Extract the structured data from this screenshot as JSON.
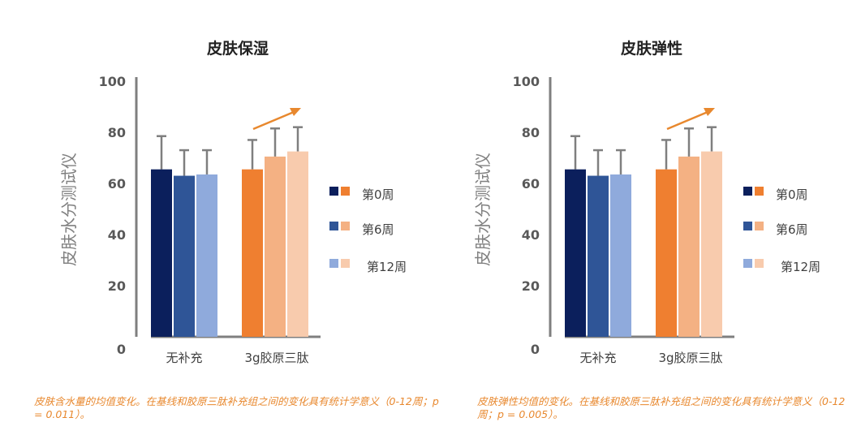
{
  "chart_data": [
    {
      "type": "bar",
      "title": "皮肤保湿",
      "ylabel": "皮肤水分测试仪",
      "ylim": [
        0,
        100
      ],
      "yticks": [
        "0",
        "20",
        "40",
        "60",
        "80",
        "100"
      ],
      "categories": [
        "无补充",
        "3g胶原三肽"
      ],
      "series": [
        {
          "name": "第0周",
          "values": [
            65.5,
            65.5
          ],
          "errors": [
            78.5,
            77
          ]
        },
        {
          "name": "第6周",
          "values": [
            63,
            70.5
          ],
          "errors": [
            73,
            81.5
          ]
        },
        {
          "name": "第12周",
          "values": [
            63.5,
            72.5
          ],
          "errors": [
            73,
            82
          ]
        }
      ],
      "colors": [
        [
          "#0B1F5C",
          "#EF7F30"
        ],
        [
          "#2F5597",
          "#F4B183"
        ],
        [
          "#8FAADC",
          "#F8CBAD"
        ]
      ],
      "error_color": "#7F7F7F",
      "arrow_color": "#E8882E",
      "legend_position": "right"
    },
    {
      "type": "bar",
      "title": "皮肤弹性",
      "ylabel": "皮肤水分测试仪",
      "ylim": [
        0,
        100
      ],
      "yticks": [
        "0",
        "20",
        "40",
        "60",
        "80",
        "100"
      ],
      "categories": [
        "无补充",
        "3g胶原三肽"
      ],
      "series": [
        {
          "name": "第0周",
          "values": [
            65.5,
            65.5
          ],
          "errors": [
            78.5,
            77
          ]
        },
        {
          "name": "第6周",
          "values": [
            63,
            70.5
          ],
          "errors": [
            73,
            81.5
          ]
        },
        {
          "name": "第12周",
          "values": [
            63.5,
            72.5
          ],
          "errors": [
            73,
            82
          ]
        }
      ],
      "colors": [
        [
          "#0B1F5C",
          "#EF7F30"
        ],
        [
          "#2F5597",
          "#F4B183"
        ],
        [
          "#8FAADC",
          "#F8CBAD"
        ]
      ],
      "error_color": "#7F7F7F",
      "arrow_color": "#E8882E",
      "legend_position": "right"
    }
  ],
  "captions": {
    "left": "皮肤含水量的均值变化。在基线和胶原三肽补充组之间的变化具有统计学意义（0-12周；p = 0.011）。",
    "right": "皮肤弹性均值的变化。在基线和胶原三肽补充组之间的变化具有统计学意义（0-12周；p = 0.005）。"
  }
}
